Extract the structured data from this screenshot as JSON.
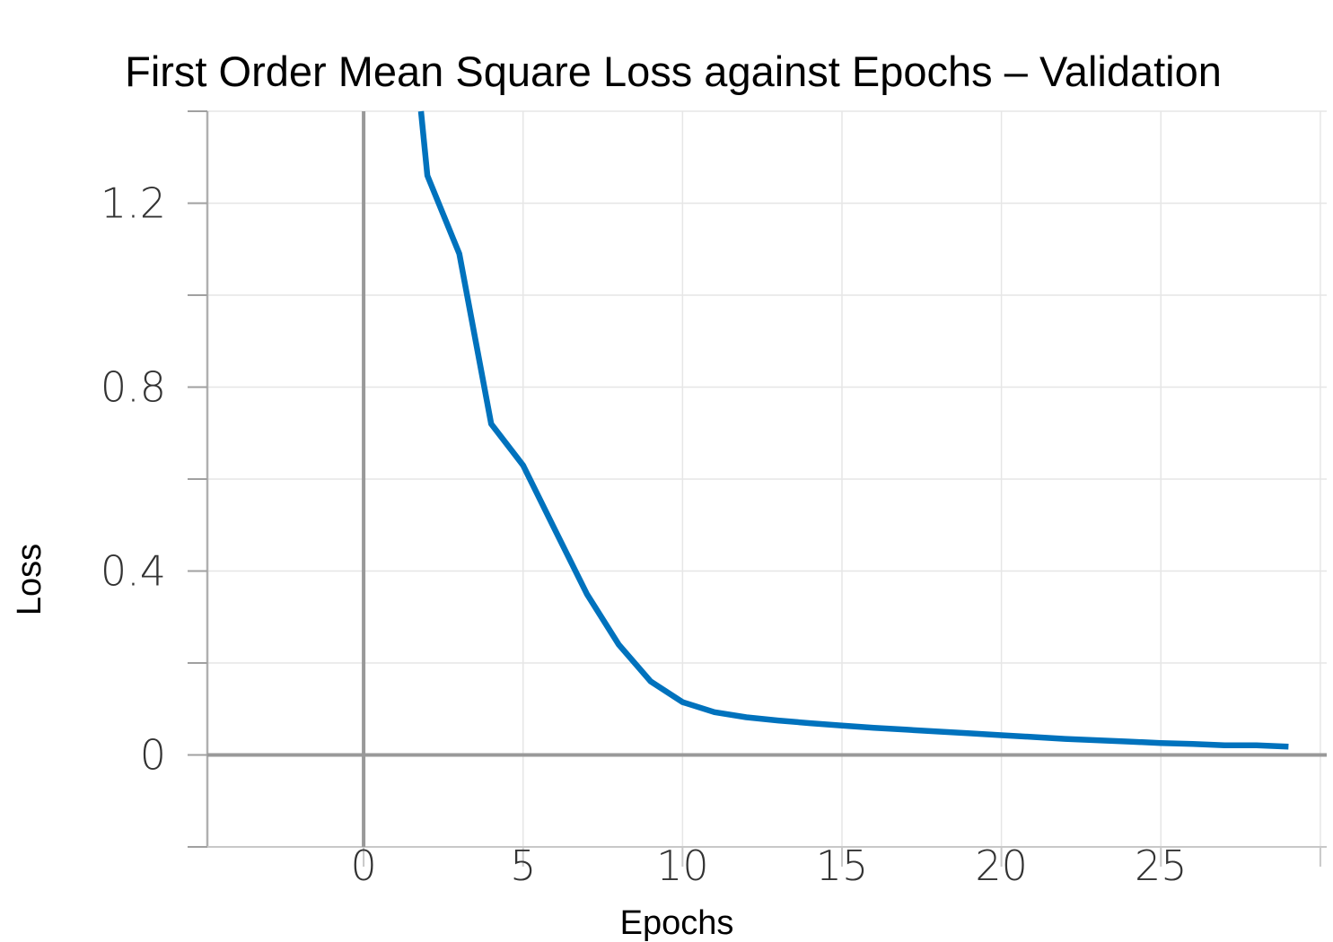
{
  "chart_data": {
    "type": "line",
    "title": "First Order Mean Square Loss against Epochs – Validation",
    "xlabel": "Epochs",
    "ylabel": "Loss",
    "xlim": [
      -4.9,
      30.2
    ],
    "ylim": [
      -0.2,
      1.4
    ],
    "x_ticks": [
      0,
      5,
      10,
      15,
      20,
      25
    ],
    "x_tick_labels": [
      "0",
      "5",
      "10",
      "15",
      "20",
      "25"
    ],
    "x_minor_ticks": [
      -5,
      30
    ],
    "y_ticks": [
      0,
      0.4,
      0.8,
      1.2
    ],
    "y_tick_labels": [
      "0",
      "0.4",
      "0.8",
      "1.2"
    ],
    "y_minor_ticks": [
      -0.2,
      0.2,
      0.6,
      1.0,
      1.4
    ],
    "grid": true,
    "legend": "none",
    "line_color": "#0072bd",
    "series": [
      {
        "x": [
          1.8,
          2,
          3,
          4,
          5,
          6,
          7,
          8,
          9,
          10,
          11,
          12,
          13,
          14,
          15,
          16,
          17,
          18,
          19,
          20,
          21,
          22,
          23,
          24,
          25,
          26,
          27,
          28,
          29
        ],
        "values": [
          1.4,
          1.26,
          1.09,
          0.72,
          0.63,
          0.49,
          0.35,
          0.24,
          0.16,
          0.115,
          0.093,
          0.082,
          0.075,
          0.069,
          0.064,
          0.059,
          0.055,
          0.051,
          0.047,
          0.043,
          0.039,
          0.035,
          0.032,
          0.029,
          0.026,
          0.024,
          0.021,
          0.021,
          0.018
        ]
      }
    ]
  }
}
